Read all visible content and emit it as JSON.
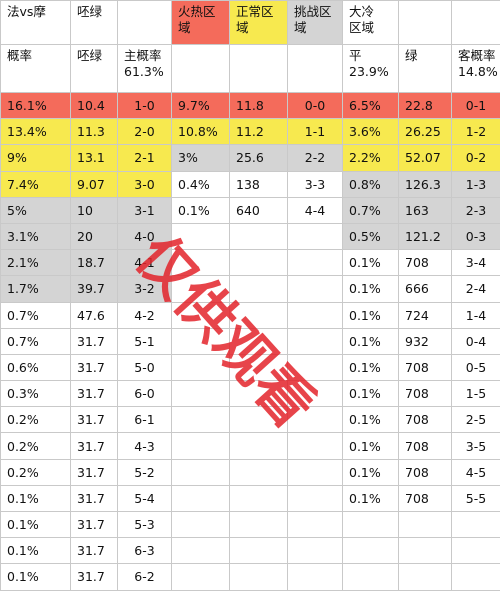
{
  "colors": {
    "red": "#f46b5b",
    "yellow": "#f7e94f",
    "gray": "#d4d4d4",
    "white": "#ffffff",
    "watermark": "#e3242b"
  },
  "header1": [
    "法vs摩",
    "呸绿",
    "",
    "",
    "火热区\n域",
    "正常区\n域",
    "挑战区\n域",
    "大冷\n区域",
    "",
    ""
  ],
  "header2": [
    "概率",
    "呸绿",
    "主概率\n61.3%",
    "",
    "",
    "",
    "平\n23.9%",
    "",
    "绿",
    "客概率\n14.8%"
  ],
  "rows": [
    {
      "cells": [
        "16.1%",
        "10.4",
        "1-0",
        "9.7%",
        "11.8",
        "0-0",
        "6.5%",
        "22.8",
        "0-1"
      ],
      "colors": [
        "red",
        "red",
        "red",
        "red",
        "red",
        "red",
        "red",
        "red",
        "red"
      ]
    },
    {
      "cells": [
        "13.4%",
        "11.3",
        "2-0",
        "10.8%",
        "11.2",
        "1-1",
        "3.6%",
        "26.25",
        "1-2"
      ],
      "colors": [
        "yellow",
        "yellow",
        "yellow",
        "yellow",
        "yellow",
        "yellow",
        "yellow",
        "yellow",
        "yellow"
      ]
    },
    {
      "cells": [
        "9%",
        "13.1",
        "2-1",
        "3%",
        "25.6",
        "2-2",
        "2.2%",
        "52.07",
        "0-2"
      ],
      "colors": [
        "yellow",
        "yellow",
        "yellow",
        "gray",
        "gray",
        "gray",
        "yellow",
        "yellow",
        "yellow"
      ]
    },
    {
      "cells": [
        "7.4%",
        "9.07",
        "3-0",
        "0.4%",
        "138",
        "3-3",
        "0.8%",
        "126.3",
        "1-3"
      ],
      "colors": [
        "yellow",
        "yellow",
        "yellow",
        "white",
        "white",
        "white",
        "gray",
        "gray",
        "gray"
      ]
    },
    {
      "cells": [
        "5%",
        "10",
        "3-1",
        "0.1%",
        "640",
        "4-4",
        "0.7%",
        "163",
        "2-3"
      ],
      "colors": [
        "gray",
        "gray",
        "gray",
        "white",
        "white",
        "white",
        "gray",
        "gray",
        "gray"
      ]
    },
    {
      "cells": [
        "3.1%",
        "20",
        "4-0",
        "",
        "",
        "",
        "0.5%",
        "121.2",
        "0-3"
      ],
      "colors": [
        "gray",
        "gray",
        "gray",
        "white",
        "white",
        "white",
        "gray",
        "gray",
        "gray"
      ]
    },
    {
      "cells": [
        "2.1%",
        "18.7",
        "4-1",
        "",
        "",
        "",
        "0.1%",
        "708",
        "3-4"
      ],
      "colors": [
        "gray",
        "gray",
        "gray",
        "white",
        "white",
        "white",
        "white",
        "white",
        "white"
      ]
    },
    {
      "cells": [
        "1.7%",
        "39.7",
        "3-2",
        "",
        "",
        "",
        "0.1%",
        "666",
        "2-4"
      ],
      "colors": [
        "gray",
        "gray",
        "gray",
        "white",
        "white",
        "white",
        "white",
        "white",
        "white"
      ]
    },
    {
      "cells": [
        "0.7%",
        "47.6",
        "4-2",
        "",
        "",
        "",
        "0.1%",
        "724",
        "1-4"
      ],
      "colors": [
        "white",
        "white",
        "white",
        "white",
        "white",
        "white",
        "white",
        "white",
        "white"
      ]
    },
    {
      "cells": [
        "0.7%",
        "31.7",
        "5-1",
        "",
        "",
        "",
        "0.1%",
        "932",
        "0-4"
      ],
      "colors": [
        "white",
        "white",
        "white",
        "white",
        "white",
        "white",
        "white",
        "white",
        "white"
      ]
    },
    {
      "cells": [
        "0.6%",
        "31.7",
        "5-0",
        "",
        "",
        "",
        "0.1%",
        "708",
        "0-5"
      ],
      "colors": [
        "white",
        "white",
        "white",
        "white",
        "white",
        "white",
        "white",
        "white",
        "white"
      ]
    },
    {
      "cells": [
        "0.3%",
        "31.7",
        "6-0",
        "",
        "",
        "",
        "0.1%",
        "708",
        "1-5"
      ],
      "colors": [
        "white",
        "white",
        "white",
        "white",
        "white",
        "white",
        "white",
        "white",
        "white"
      ]
    },
    {
      "cells": [
        "0.2%",
        "31.7",
        "6-1",
        "",
        "",
        "",
        "0.1%",
        "708",
        "2-5"
      ],
      "colors": [
        "white",
        "white",
        "white",
        "white",
        "white",
        "white",
        "white",
        "white",
        "white"
      ]
    },
    {
      "cells": [
        "0.2%",
        "31.7",
        "4-3",
        "",
        "",
        "",
        "0.1%",
        "708",
        "3-5"
      ],
      "colors": [
        "white",
        "white",
        "white",
        "white",
        "white",
        "white",
        "white",
        "white",
        "white"
      ]
    },
    {
      "cells": [
        "0.2%",
        "31.7",
        "5-2",
        "",
        "",
        "",
        "0.1%",
        "708",
        "4-5"
      ],
      "colors": [
        "white",
        "white",
        "white",
        "white",
        "white",
        "white",
        "white",
        "white",
        "white"
      ]
    },
    {
      "cells": [
        "0.1%",
        "31.7",
        "5-4",
        "",
        "",
        "",
        "0.1%",
        "708",
        "5-5"
      ],
      "colors": [
        "white",
        "white",
        "white",
        "white",
        "white",
        "white",
        "white",
        "white",
        "white"
      ]
    },
    {
      "cells": [
        "0.1%",
        "31.7",
        "5-3",
        "",
        "",
        "",
        "",
        "",
        ""
      ],
      "colors": [
        "white",
        "white",
        "white",
        "white",
        "white",
        "white",
        "white",
        "white",
        "white"
      ]
    },
    {
      "cells": [
        "0.1%",
        "31.7",
        "6-3",
        "",
        "",
        "",
        "",
        "",
        ""
      ],
      "colors": [
        "white",
        "white",
        "white",
        "white",
        "white",
        "white",
        "white",
        "white",
        "white"
      ]
    },
    {
      "cells": [
        "0.1%",
        "31.7",
        "6-2",
        "",
        "",
        "",
        "",
        "",
        ""
      ],
      "colors": [
        "white",
        "white",
        "white",
        "white",
        "white",
        "white",
        "white",
        "white",
        "white"
      ]
    }
  ],
  "header1_colors": [
    "white",
    "white",
    "white",
    "white",
    "red",
    "yellow",
    "gray",
    "white",
    "white",
    "white"
  ],
  "watermark": "仅供观看"
}
